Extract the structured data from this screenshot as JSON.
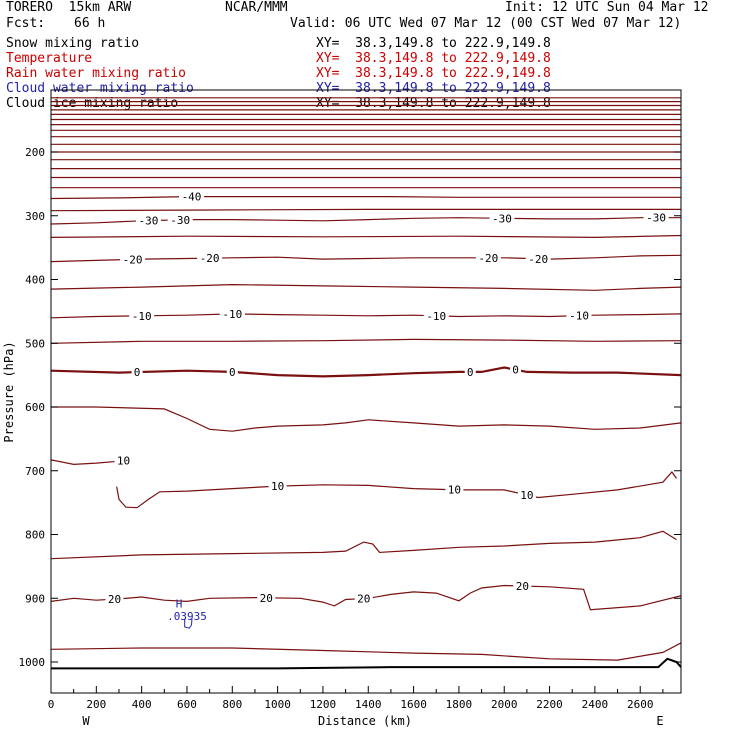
{
  "header": {
    "model": "TORERO  15km ARW",
    "center": "NCAR/MMM",
    "init": "Init: 12 UTC Sun 04 Mar 12",
    "fcst_label": "Fcst:",
    "fcst_value": "66 h",
    "valid": "Valid: 06 UTC Wed 07 Mar 12 (00 CST Wed 07 Mar 12)"
  },
  "fields": [
    {
      "name": "Snow mixing ratio",
      "xy": "XY=  38.3,149.8 to 222.9,149.8",
      "color": "#000000"
    },
    {
      "name": "Temperature",
      "xy": "XY=  38.3,149.8 to 222.9,149.8",
      "color": "#cc0000"
    },
    {
      "name": "Rain water mixing ratio",
      "xy": "XY=  38.3,149.8 to 222.9,149.8",
      "color": "#cc0000"
    },
    {
      "name": "Cloud water mixing ratio",
      "xy": "XY=  38.3,149.8 to 222.9,149.8",
      "color": "#2222aa"
    },
    {
      "name": "Cloud ice mixing ratio",
      "xy": "XY=  38.3,149.8 to 222.9,149.8",
      "color": "#000000"
    }
  ],
  "chart_data": {
    "type": "line",
    "title": "",
    "xlabel": "Distance (km)",
    "ylabel": "Pressure (hPa)",
    "xlim": [
      0,
      2780
    ],
    "ylim": [
      1050,
      110
    ],
    "xticks": [
      0,
      200,
      400,
      600,
      800,
      1000,
      1200,
      1400,
      1600,
      1800,
      2000,
      2200,
      2400,
      2600
    ],
    "yticks": [
      200,
      300,
      400,
      500,
      600,
      700,
      800,
      900,
      1000
    ],
    "x_end_labels": {
      "left": "W",
      "right": "E"
    },
    "contour_color": "#7a1010",
    "series": [
      {
        "level": "",
        "points": [
          [
            0,
            1010
          ],
          [
            500,
            1010
          ],
          [
            1000,
            1010
          ],
          [
            1500,
            1008
          ],
          [
            2000,
            1008
          ],
          [
            2500,
            1008
          ],
          [
            2680,
            1008
          ],
          [
            2720,
            995
          ],
          [
            2760,
            1000
          ],
          [
            2780,
            1008
          ]
        ],
        "color": "#000000",
        "width": 2
      },
      {
        "level": "",
        "points": [
          [
            0,
            980
          ],
          [
            400,
            978
          ],
          [
            800,
            978
          ],
          [
            1200,
            982
          ],
          [
            1600,
            986
          ],
          [
            1900,
            988
          ],
          [
            2200,
            995
          ],
          [
            2500,
            997
          ],
          [
            2700,
            985
          ],
          [
            2780,
            970
          ]
        ]
      },
      {
        "level": "20",
        "points": [
          [
            0,
            905
          ],
          [
            100,
            900
          ],
          [
            200,
            903
          ],
          [
            300,
            901
          ],
          [
            400,
            898
          ],
          [
            500,
            903
          ],
          [
            600,
            905
          ],
          [
            700,
            900
          ],
          [
            900,
            899
          ],
          [
            1100,
            900
          ],
          [
            1200,
            906
          ],
          [
            1250,
            912
          ],
          [
            1300,
            902
          ],
          [
            1400,
            900
          ],
          [
            1500,
            894
          ],
          [
            1600,
            890
          ],
          [
            1700,
            892
          ],
          [
            1800,
            904
          ],
          [
            1850,
            892
          ],
          [
            1900,
            884
          ],
          [
            2000,
            880
          ],
          [
            2200,
            882
          ],
          [
            2350,
            886
          ],
          [
            2380,
            918
          ],
          [
            2600,
            912
          ],
          [
            2780,
            896
          ]
        ],
        "labels": [
          [
            280,
            "20"
          ],
          [
            950,
            "20"
          ],
          [
            1380,
            "20"
          ],
          [
            2080,
            "20"
          ]
        ]
      },
      {
        "level": "",
        "points": [
          [
            0,
            838
          ],
          [
            400,
            832
          ],
          [
            800,
            830
          ],
          [
            1200,
            828
          ],
          [
            1300,
            826
          ],
          [
            1380,
            812
          ],
          [
            1420,
            815
          ],
          [
            1450,
            828
          ],
          [
            1600,
            825
          ],
          [
            1800,
            820
          ],
          [
            2000,
            818
          ],
          [
            2200,
            814
          ],
          [
            2400,
            812
          ],
          [
            2600,
            805
          ],
          [
            2700,
            795
          ],
          [
            2760,
            808
          ]
        ]
      },
      {
        "level": "10",
        "points": [
          [
            0,
            683
          ],
          [
            100,
            690
          ],
          [
            200,
            688
          ],
          [
            300,
            685
          ],
          [
            350,
            683
          ],
          [
            355,
            688
          ]
        ],
        "labels": [
          [
            320,
            "10"
          ]
        ]
      },
      {
        "level": "10",
        "points": [
          [
            290,
            725
          ],
          [
            300,
            745
          ],
          [
            330,
            757
          ],
          [
            380,
            758
          ],
          [
            430,
            745
          ],
          [
            480,
            733
          ],
          [
            600,
            732
          ],
          [
            800,
            728
          ],
          [
            1000,
            724
          ],
          [
            1200,
            722
          ],
          [
            1400,
            723
          ],
          [
            1600,
            728
          ],
          [
            1800,
            730
          ],
          [
            2000,
            730
          ],
          [
            2150,
            742
          ],
          [
            2300,
            737
          ],
          [
            2500,
            730
          ],
          [
            2700,
            718
          ],
          [
            2740,
            702
          ],
          [
            2760,
            712
          ]
        ],
        "labels": [
          [
            1000,
            "10"
          ],
          [
            1780,
            "10"
          ],
          [
            2100,
            "10"
          ]
        ]
      },
      {
        "level": "",
        "points": [
          [
            0,
            600
          ],
          [
            200,
            600
          ],
          [
            500,
            603
          ],
          [
            600,
            618
          ],
          [
            700,
            635
          ],
          [
            800,
            638
          ],
          [
            900,
            633
          ],
          [
            1000,
            630
          ],
          [
            1200,
            628
          ],
          [
            1300,
            625
          ],
          [
            1400,
            620
          ],
          [
            1600,
            625
          ],
          [
            1800,
            630
          ],
          [
            2000,
            628
          ],
          [
            2200,
            630
          ],
          [
            2400,
            635
          ],
          [
            2600,
            633
          ],
          [
            2780,
            625
          ]
        ]
      },
      {
        "level": "0",
        "points": [
          [
            0,
            543
          ],
          [
            300,
            546
          ],
          [
            600,
            543
          ],
          [
            800,
            545
          ],
          [
            1000,
            550
          ],
          [
            1200,
            552
          ],
          [
            1400,
            550
          ],
          [
            1600,
            547
          ],
          [
            1800,
            545
          ],
          [
            1900,
            545
          ],
          [
            2000,
            538
          ],
          [
            2100,
            545
          ],
          [
            2300,
            546
          ],
          [
            2500,
            546
          ],
          [
            2780,
            550
          ]
        ],
        "labels": [
          [
            380,
            "0"
          ],
          [
            800,
            "0"
          ],
          [
            1850,
            "0"
          ],
          [
            2050,
            "0"
          ]
        ],
        "width": 2.2
      },
      {
        "level": "",
        "points": [
          [
            0,
            500
          ],
          [
            400,
            497
          ],
          [
            800,
            497
          ],
          [
            1200,
            496
          ],
          [
            1600,
            494
          ],
          [
            2000,
            495
          ],
          [
            2400,
            497
          ],
          [
            2780,
            496
          ]
        ]
      },
      {
        "level": "-10",
        "points": [
          [
            0,
            460
          ],
          [
            200,
            458
          ],
          [
            400,
            457
          ],
          [
            600,
            456
          ],
          [
            800,
            454
          ],
          [
            1000,
            455
          ],
          [
            1200,
            456
          ],
          [
            1400,
            457
          ],
          [
            1600,
            456
          ],
          [
            1800,
            458
          ],
          [
            2000,
            457
          ],
          [
            2200,
            458
          ],
          [
            2400,
            456
          ],
          [
            2600,
            455
          ],
          [
            2780,
            454
          ]
        ],
        "labels": [
          [
            400,
            "-10"
          ],
          [
            800,
            "-10"
          ],
          [
            1700,
            "-10"
          ],
          [
            2330,
            "-10"
          ]
        ]
      },
      {
        "level": "",
        "points": [
          [
            0,
            415
          ],
          [
            400,
            412
          ],
          [
            800,
            408
          ],
          [
            1200,
            410
          ],
          [
            1600,
            412
          ],
          [
            2000,
            414
          ],
          [
            2400,
            417
          ],
          [
            2600,
            414
          ],
          [
            2780,
            412
          ]
        ]
      },
      {
        "level": "-20",
        "points": [
          [
            0,
            372
          ],
          [
            200,
            370
          ],
          [
            400,
            368
          ],
          [
            600,
            367
          ],
          [
            800,
            366
          ],
          [
            1000,
            365
          ],
          [
            1200,
            368
          ],
          [
            1400,
            367
          ],
          [
            1600,
            366
          ],
          [
            1800,
            366
          ],
          [
            2000,
            366
          ],
          [
            2200,
            368
          ],
          [
            2400,
            366
          ],
          [
            2600,
            363
          ],
          [
            2780,
            362
          ]
        ],
        "labels": [
          [
            360,
            "-20"
          ],
          [
            700,
            "-20"
          ],
          [
            1930,
            "-20"
          ],
          [
            2150,
            "-20"
          ]
        ]
      },
      {
        "level": "",
        "points": [
          [
            0,
            334
          ],
          [
            600,
            332
          ],
          [
            1200,
            333
          ],
          [
            1800,
            332
          ],
          [
            2400,
            334
          ],
          [
            2780,
            331
          ]
        ]
      },
      {
        "level": "-30",
        "points": [
          [
            0,
            313
          ],
          [
            200,
            311
          ],
          [
            400,
            308
          ],
          [
            600,
            306
          ],
          [
            800,
            306
          ],
          [
            1000,
            307
          ],
          [
            1200,
            308
          ],
          [
            1400,
            306
          ],
          [
            1600,
            304
          ],
          [
            1800,
            303
          ],
          [
            2000,
            304
          ],
          [
            2200,
            305
          ],
          [
            2400,
            305
          ],
          [
            2600,
            303
          ],
          [
            2780,
            303
          ]
        ],
        "labels": [
          [
            430,
            "-30"
          ],
          [
            570,
            "-30"
          ],
          [
            1990,
            "-30"
          ],
          [
            2670,
            "-30"
          ]
        ]
      },
      {
        "level": "",
        "points": [
          [
            0,
            292
          ],
          [
            700,
            291
          ],
          [
            1400,
            290
          ],
          [
            2100,
            290
          ],
          [
            2780,
            290
          ]
        ]
      },
      {
        "level": "-40",
        "points": [
          [
            0,
            273
          ],
          [
            300,
            272
          ],
          [
            600,
            270
          ],
          [
            900,
            270
          ],
          [
            1200,
            270
          ],
          [
            1500,
            270
          ],
          [
            1800,
            271
          ],
          [
            2100,
            271
          ],
          [
            2400,
            271
          ],
          [
            2780,
            271
          ]
        ],
        "labels": [
          [
            620,
            "-40"
          ]
        ]
      },
      {
        "level": "",
        "points": [
          [
            0,
            256
          ],
          [
            2780,
            256
          ]
        ]
      },
      {
        "level": "",
        "points": [
          [
            0,
            240
          ],
          [
            2780,
            240
          ]
        ]
      },
      {
        "level": "",
        "points": [
          [
            0,
            226
          ],
          [
            2780,
            226
          ]
        ]
      },
      {
        "level": "",
        "points": [
          [
            0,
            212
          ],
          [
            2780,
            212
          ]
        ]
      },
      {
        "level": "",
        "points": [
          [
            0,
            200
          ],
          [
            2780,
            200
          ]
        ]
      },
      {
        "level": "",
        "points": [
          [
            0,
            188
          ],
          [
            2780,
            188
          ]
        ]
      },
      {
        "level": "",
        "points": [
          [
            0,
            176
          ],
          [
            2780,
            176
          ]
        ]
      },
      {
        "level": "",
        "points": [
          [
            0,
            166
          ],
          [
            2780,
            166
          ]
        ]
      },
      {
        "level": "",
        "points": [
          [
            0,
            157
          ],
          [
            2780,
            157
          ]
        ]
      },
      {
        "level": "",
        "points": [
          [
            0,
            149
          ],
          [
            2780,
            149
          ]
        ]
      },
      {
        "level": "",
        "points": [
          [
            0,
            141
          ],
          [
            2780,
            141
          ]
        ]
      },
      {
        "level": "",
        "points": [
          [
            0,
            134
          ],
          [
            2780,
            134
          ]
        ]
      },
      {
        "level": "",
        "points": [
          [
            0,
            127
          ],
          [
            2780,
            127
          ]
        ]
      },
      {
        "level": "",
        "points": [
          [
            0,
            121
          ],
          [
            2780,
            121
          ]
        ]
      },
      {
        "level": "",
        "points": [
          [
            0,
            115
          ],
          [
            2780,
            115
          ]
        ]
      }
    ],
    "annotations": [
      {
        "text": "H",
        "x": 565,
        "y": 908,
        "color": "#2222aa"
      },
      {
        "text": ".03935",
        "x": 600,
        "y": 928,
        "color": "#2222aa"
      }
    ],
    "cloud_water_outline": [
      [
        590,
        932
      ],
      [
        590,
        945
      ],
      [
        610,
        947
      ],
      [
        620,
        942
      ],
      [
        622,
        932
      ]
    ]
  }
}
